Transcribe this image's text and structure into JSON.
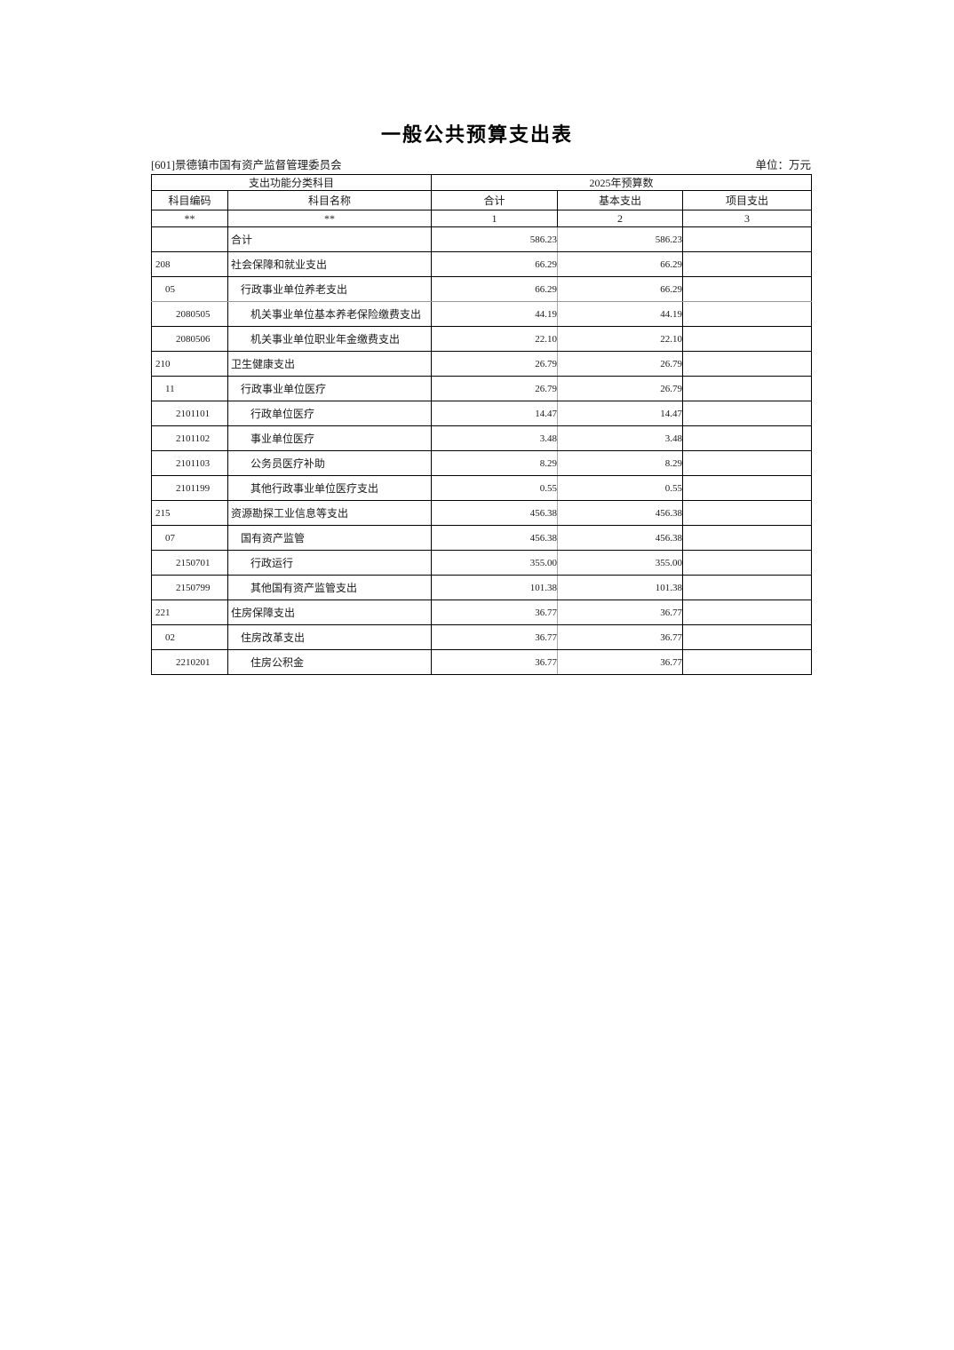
{
  "page": {
    "title": "一般公共预算支出表",
    "org": "[601]景德镇市国有资产监督管理委员会",
    "unit": "单位：万元"
  },
  "table": {
    "header": {
      "function_group": "支出功能分类科目",
      "budget_group": "2025年预算数",
      "code": "科目编码",
      "name": "科目名称",
      "total": "合计",
      "basic": "基本支出",
      "project": "项目支出",
      "code_mask": "**",
      "name_mask": "**",
      "total_no": "1",
      "basic_no": "2",
      "project_no": "3"
    },
    "rows": [
      {
        "code": "",
        "name": "合计",
        "level": 1,
        "total": "586.23",
        "basic": "586.23",
        "project": ""
      },
      {
        "code": "208",
        "name": "社会保障和就业支出",
        "level": 1,
        "total": "66.29",
        "basic": "66.29",
        "project": ""
      },
      {
        "code": "05",
        "name": "行政事业单位养老支出",
        "level": 2,
        "total": "66.29",
        "basic": "66.29",
        "project": ""
      },
      {
        "code": "2080505",
        "name": "机关事业单位基本养老保险缴费支出",
        "level": 3,
        "total": "44.19",
        "basic": "44.19",
        "project": ""
      },
      {
        "code": "2080506",
        "name": "机关事业单位职业年金缴费支出",
        "level": 3,
        "total": "22.10",
        "basic": "22.10",
        "project": ""
      },
      {
        "code": "210",
        "name": "卫生健康支出",
        "level": 1,
        "total": "26.79",
        "basic": "26.79",
        "project": ""
      },
      {
        "code": "11",
        "name": "行政事业单位医疗",
        "level": 2,
        "total": "26.79",
        "basic": "26.79",
        "project": ""
      },
      {
        "code": "2101101",
        "name": "行政单位医疗",
        "level": 3,
        "total": "14.47",
        "basic": "14.47",
        "project": ""
      },
      {
        "code": "2101102",
        "name": "事业单位医疗",
        "level": 3,
        "total": "3.48",
        "basic": "3.48",
        "project": ""
      },
      {
        "code": "2101103",
        "name": "公务员医疗补助",
        "level": 3,
        "total": "8.29",
        "basic": "8.29",
        "project": ""
      },
      {
        "code": "2101199",
        "name": "其他行政事业单位医疗支出",
        "level": 3,
        "total": "0.55",
        "basic": "0.55",
        "project": ""
      },
      {
        "code": "215",
        "name": "资源勘探工业信息等支出",
        "level": 1,
        "total": "456.38",
        "basic": "456.38",
        "project": ""
      },
      {
        "code": "07",
        "name": "国有资产监管",
        "level": 2,
        "total": "456.38",
        "basic": "456.38",
        "project": ""
      },
      {
        "code": "2150701",
        "name": "行政运行",
        "level": 3,
        "total": "355.00",
        "basic": "355.00",
        "project": ""
      },
      {
        "code": "2150799",
        "name": "其他国有资产监管支出",
        "level": 3,
        "total": "101.38",
        "basic": "101.38",
        "project": ""
      },
      {
        "code": "221",
        "name": "住房保障支出",
        "level": 1,
        "total": "36.77",
        "basic": "36.77",
        "project": ""
      },
      {
        "code": "02",
        "name": "住房改革支出",
        "level": 2,
        "total": "36.77",
        "basic": "36.77",
        "project": ""
      },
      {
        "code": "2210201",
        "name": "住房公积金",
        "level": 3,
        "total": "36.77",
        "basic": "36.77",
        "project": ""
      }
    ]
  }
}
